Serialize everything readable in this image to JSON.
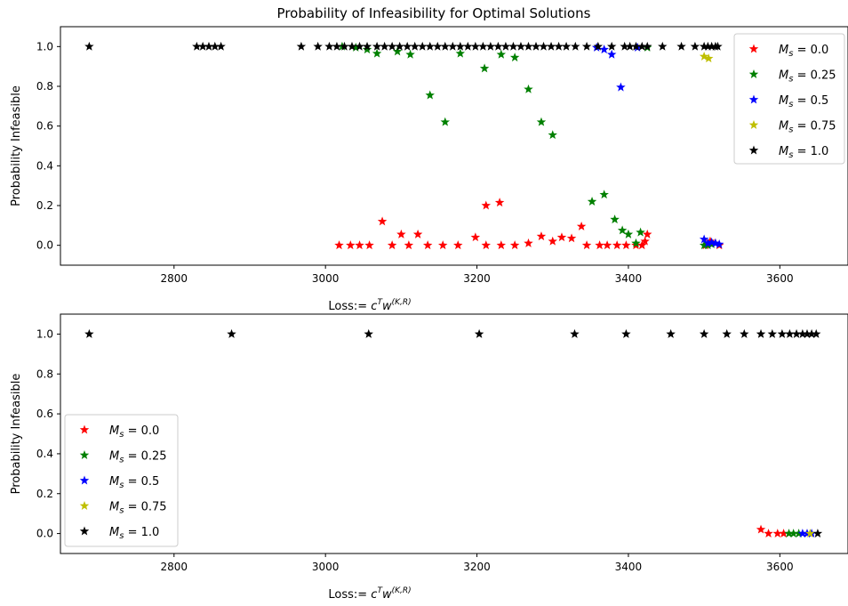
{
  "chart_data": [
    {
      "type": "scatter",
      "title": "Probability of Infeasibility for Optimal Solutions",
      "xlabel": "Loss:= c^T w^(K,R)",
      "ylabel": "Probability Infeasible",
      "xlim": [
        2650,
        3690
      ],
      "ylim": [
        -0.1,
        1.1
      ],
      "xticks": [
        2800,
        3000,
        3200,
        3400,
        3600
      ],
      "yticks": [
        0.0,
        0.2,
        0.4,
        0.6,
        0.8,
        1.0
      ],
      "legend_position": "top-right",
      "marker": "star",
      "series": [
        {
          "name": "M_s = 0.0",
          "color": "#ff0000",
          "points": [
            [
              3018,
              0.0
            ],
            [
              3033,
              0.0
            ],
            [
              3045,
              0.0
            ],
            [
              3058,
              0.0
            ],
            [
              3075,
              0.12
            ],
            [
              3088,
              0.0
            ],
            [
              3100,
              0.055
            ],
            [
              3110,
              0.0
            ],
            [
              3122,
              0.055
            ],
            [
              3135,
              0.0
            ],
            [
              3155,
              0.0
            ],
            [
              3175,
              0.0
            ],
            [
              3198,
              0.04
            ],
            [
              3212,
              0.2
            ],
            [
              3212,
              0.0
            ],
            [
              3230,
              0.215
            ],
            [
              3232,
              0.0
            ],
            [
              3250,
              0.0
            ],
            [
              3268,
              0.01
            ],
            [
              3285,
              0.045
            ],
            [
              3300,
              0.02
            ],
            [
              3312,
              0.04
            ],
            [
              3325,
              0.035
            ],
            [
              3338,
              0.095
            ],
            [
              3345,
              0.0
            ],
            [
              3362,
              0.0
            ],
            [
              3372,
              0.0
            ],
            [
              3385,
              0.0
            ],
            [
              3397,
              0.0
            ],
            [
              3410,
              0.0
            ],
            [
              3418,
              0.0
            ],
            [
              3425,
              0.055
            ],
            [
              3422,
              0.02
            ],
            [
              3502,
              0.0
            ],
            [
              3508,
              0.02
            ],
            [
              3515,
              0.01
            ],
            [
              3520,
              0.0
            ]
          ]
        },
        {
          "name": "M_s = 0.25",
          "color": "#008000",
          "points": [
            [
              3022,
              1.0
            ],
            [
              3040,
              0.995
            ],
            [
              3055,
              0.985
            ],
            [
              3068,
              0.965
            ],
            [
              3095,
              0.975
            ],
            [
              3112,
              0.96
            ],
            [
              3138,
              0.755
            ],
            [
              3158,
              0.62
            ],
            [
              3178,
              0.965
            ],
            [
              3210,
              0.89
            ],
            [
              3232,
              0.96
            ],
            [
              3250,
              0.945
            ],
            [
              3268,
              0.785
            ],
            [
              3285,
              0.62
            ],
            [
              3300,
              0.555
            ],
            [
              3352,
              0.22
            ],
            [
              3368,
              0.255
            ],
            [
              3382,
              0.13
            ],
            [
              3392,
              0.075
            ],
            [
              3400,
              0.055
            ],
            [
              3410,
              0.01
            ],
            [
              3416,
              0.065
            ],
            [
              3425,
              0.995
            ],
            [
              3500,
              0.0
            ],
            [
              3505,
              0.0
            ],
            [
              3510,
              0.005
            ]
          ]
        },
        {
          "name": "M_s = 0.5",
          "color": "#0000ff",
          "points": [
            [
              3358,
              0.995
            ],
            [
              3368,
              0.985
            ],
            [
              3378,
              0.96
            ],
            [
              3390,
              0.795
            ],
            [
              3412,
              0.995
            ],
            [
              3500,
              0.03
            ],
            [
              3505,
              0.01
            ],
            [
              3510,
              0.015
            ],
            [
              3515,
              0.01
            ],
            [
              3520,
              0.005
            ]
          ]
        },
        {
          "name": "M_s = 0.75",
          "color": "#bfbf00",
          "points": [
            [
              3500,
              0.95
            ],
            [
              3506,
              0.94
            ]
          ]
        },
        {
          "name": "M_s = 1.0",
          "color": "#000000",
          "points": [
            [
              2688,
              1.0
            ],
            [
              2830,
              1.0
            ],
            [
              2838,
              1.0
            ],
            [
              2846,
              1.0
            ],
            [
              2854,
              1.0
            ],
            [
              2862,
              1.0
            ],
            [
              2968,
              1.0
            ],
            [
              2990,
              1.0
            ],
            [
              3005,
              1.0
            ],
            [
              3015,
              1.0
            ],
            [
              3025,
              1.0
            ],
            [
              3035,
              1.0
            ],
            [
              3045,
              1.0
            ],
            [
              3055,
              1.0
            ],
            [
              3068,
              1.0
            ],
            [
              3078,
              1.0
            ],
            [
              3088,
              1.0
            ],
            [
              3098,
              1.0
            ],
            [
              3108,
              1.0
            ],
            [
              3118,
              1.0
            ],
            [
              3128,
              1.0
            ],
            [
              3138,
              1.0
            ],
            [
              3148,
              1.0
            ],
            [
              3158,
              1.0
            ],
            [
              3168,
              1.0
            ],
            [
              3178,
              1.0
            ],
            [
              3188,
              1.0
            ],
            [
              3198,
              1.0
            ],
            [
              3208,
              1.0
            ],
            [
              3218,
              1.0
            ],
            [
              3228,
              1.0
            ],
            [
              3238,
              1.0
            ],
            [
              3248,
              1.0
            ],
            [
              3258,
              1.0
            ],
            [
              3268,
              1.0
            ],
            [
              3278,
              1.0
            ],
            [
              3288,
              1.0
            ],
            [
              3298,
              1.0
            ],
            [
              3308,
              1.0
            ],
            [
              3318,
              1.0
            ],
            [
              3330,
              1.0
            ],
            [
              3345,
              1.0
            ],
            [
              3360,
              1.0
            ],
            [
              3378,
              1.0
            ],
            [
              3395,
              1.0
            ],
            [
              3402,
              1.0
            ],
            [
              3410,
              1.0
            ],
            [
              3418,
              1.0
            ],
            [
              3425,
              1.0
            ],
            [
              3445,
              1.0
            ],
            [
              3470,
              1.0
            ],
            [
              3488,
              1.0
            ],
            [
              3500,
              1.0
            ],
            [
              3505,
              1.0
            ],
            [
              3510,
              1.0
            ],
            [
              3515,
              1.0
            ],
            [
              3518,
              1.0
            ]
          ]
        }
      ]
    },
    {
      "type": "scatter",
      "title": "",
      "xlabel": "Loss:= c^T w^(K,R)",
      "ylabel": "Probability Infeasible",
      "xlim": [
        2650,
        3690
      ],
      "ylim": [
        -0.1,
        1.1
      ],
      "xticks": [
        2800,
        3000,
        3200,
        3400,
        3600
      ],
      "yticks": [
        0.0,
        0.2,
        0.4,
        0.6,
        0.8,
        1.0
      ],
      "legend_position": "lower-left",
      "marker": "star",
      "series": [
        {
          "name": "M_s = 0.0",
          "color": "#ff0000",
          "points": [
            [
              3575,
              0.02
            ],
            [
              3585,
              0.0
            ],
            [
              3597,
              0.0
            ],
            [
              3605,
              0.0
            ]
          ]
        },
        {
          "name": "M_s = 0.25",
          "color": "#008000",
          "points": [
            [
              3612,
              0.0
            ],
            [
              3618,
              0.0
            ],
            [
              3625,
              0.0
            ]
          ]
        },
        {
          "name": "M_s = 0.5",
          "color": "#0000ff",
          "points": [
            [
              3630,
              0.0
            ],
            [
              3636,
              0.0
            ],
            [
              3642,
              0.0
            ]
          ]
        },
        {
          "name": "M_s = 0.75",
          "color": "#bfbf00",
          "points": [
            [
              3640,
              0.0
            ]
          ]
        },
        {
          "name": "M_s = 1.0",
          "color": "#000000",
          "points": [
            [
              2688,
              1.0
            ],
            [
              2876,
              1.0
            ],
            [
              3057,
              1.0
            ],
            [
              3203,
              1.0
            ],
            [
              3329,
              1.0
            ],
            [
              3397,
              1.0
            ],
            [
              3456,
              1.0
            ],
            [
              3500,
              1.0
            ],
            [
              3530,
              1.0
            ],
            [
              3553,
              1.0
            ],
            [
              3575,
              1.0
            ],
            [
              3590,
              1.0
            ],
            [
              3603,
              1.0
            ],
            [
              3613,
              1.0
            ],
            [
              3622,
              1.0
            ],
            [
              3630,
              1.0
            ],
            [
              3636,
              1.0
            ],
            [
              3642,
              1.0
            ],
            [
              3648,
              1.0
            ],
            [
              3650,
              0.0
            ]
          ]
        }
      ]
    }
  ]
}
